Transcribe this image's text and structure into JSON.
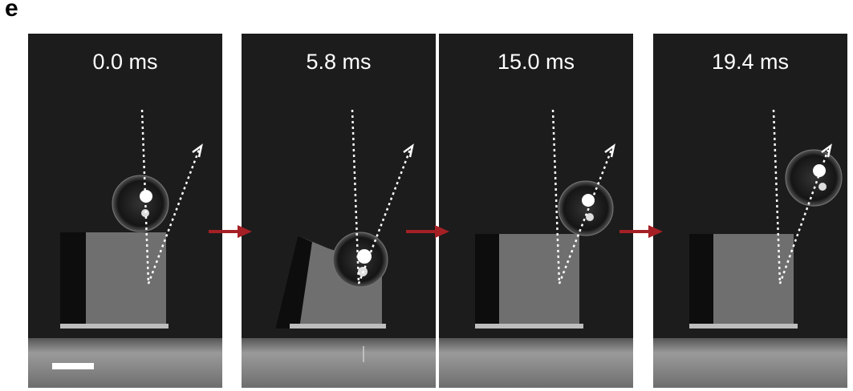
{
  "panel_label": "e",
  "frames": [
    {
      "time": "0.0 ms"
    },
    {
      "time": "5.8 ms"
    },
    {
      "time": "15.0 ms"
    },
    {
      "time": "19.4 ms"
    }
  ],
  "colors": {
    "background": "#1c1c1c",
    "arrow": "#a52025",
    "trajectory": "#ffffff",
    "scale_bar": "#ffffff"
  }
}
